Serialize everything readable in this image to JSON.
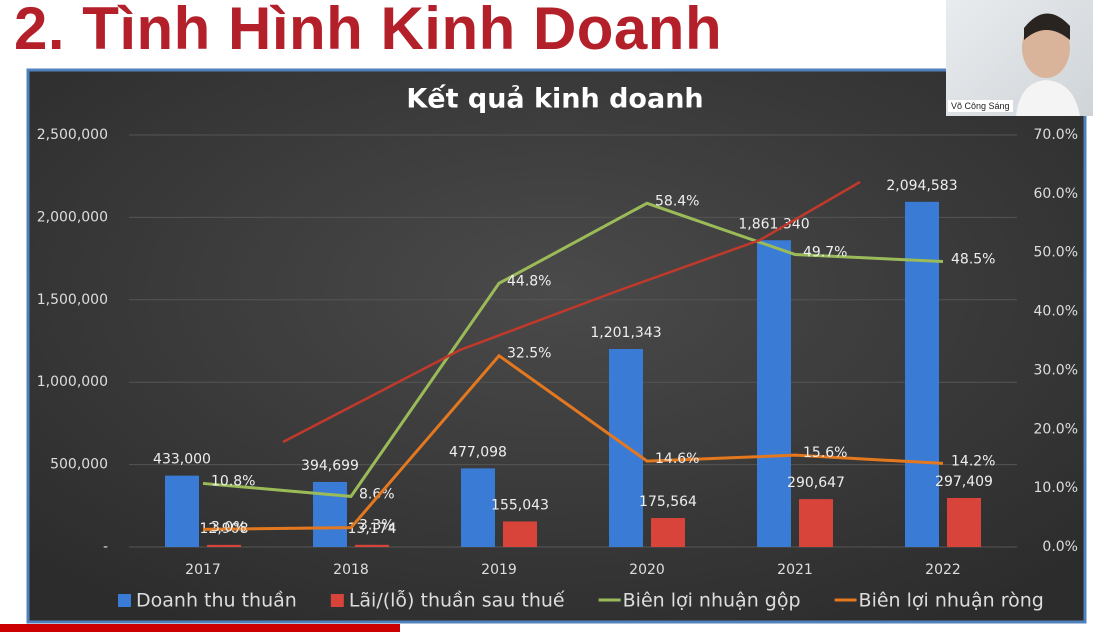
{
  "slide_title": "2. Tình Hình Kinh Doanh",
  "presenter_name": "Võ Công Sáng",
  "chart_data": {
    "type": "bar-line",
    "title": "Kết quả kinh doanh",
    "categories": [
      "2017",
      "2018",
      "2019",
      "2020",
      "2021",
      "2022"
    ],
    "ylim": [
      0,
      2500000
    ],
    "yticks": [
      {
        "value": 0,
        "label": "-"
      },
      {
        "value": 500000,
        "label": "500,000"
      },
      {
        "value": 1000000,
        "label": "1,000,000"
      },
      {
        "value": 1500000,
        "label": "1,500,000"
      },
      {
        "value": 2000000,
        "label": "2,000,000"
      },
      {
        "value": 2500000,
        "label": "2,500,000"
      }
    ],
    "y2lim": [
      0,
      70
    ],
    "y2ticks": [
      {
        "value": 0,
        "label": "0.0%"
      },
      {
        "value": 10,
        "label": "10.0%"
      },
      {
        "value": 20,
        "label": "20.0%"
      },
      {
        "value": 30,
        "label": "30.0%"
      },
      {
        "value": 40,
        "label": "40.0%"
      },
      {
        "value": 50,
        "label": "50.0%"
      },
      {
        "value": 60,
        "label": "60.0%"
      },
      {
        "value": 70,
        "label": "70.0%"
      }
    ],
    "grid": true,
    "legend": "bottom",
    "series": [
      {
        "name": "Doanh thu thuần",
        "kind": "bar",
        "color": "#3a7bd5",
        "values": [
          433000,
          394699,
          477098,
          1201343,
          1861340,
          2094583
        ],
        "value_labels": [
          "433,000",
          "394,699",
          "477,098",
          "1,201,343",
          "1,861,340",
          "2,094,583"
        ]
      },
      {
        "name": "Lãi/(lỗ) thuần sau thuế",
        "kind": "bar",
        "color": "#d9443a",
        "values": [
          12908,
          13174,
          155043,
          175564,
          290647,
          297409
        ],
        "value_labels": [
          "12,908",
          "13,174",
          "155,043",
          "175,564",
          "290,647",
          "297,409"
        ]
      },
      {
        "name": "Biên lợi nhuận gộp",
        "kind": "line",
        "axis": "y2",
        "color": "#9bbb59",
        "values": [
          10.8,
          8.6,
          44.8,
          58.4,
          49.7,
          48.5
        ],
        "value_labels": [
          "10.8%",
          "8.6%",
          "44.8%",
          "58.4%",
          "49.7%",
          "48.5%"
        ]
      },
      {
        "name": "Biên lợi nhuận ròng",
        "kind": "line",
        "axis": "y2",
        "color": "#e4781f",
        "values": [
          3.0,
          3.3,
          32.5,
          14.6,
          15.6,
          14.2
        ],
        "value_labels": [
          "3.0%",
          "3.3%",
          "32.5%",
          "14.6%",
          "15.6%",
          "14.2%"
        ]
      }
    ]
  }
}
